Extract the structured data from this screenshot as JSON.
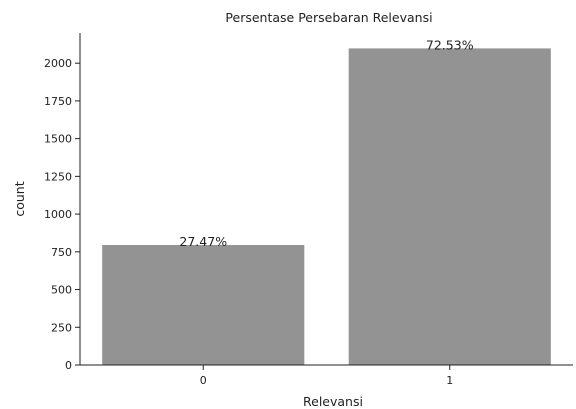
{
  "chart_data": {
    "type": "bar",
    "title": "Persentase Persebaran Relevansi",
    "xlabel": "Relevansi",
    "ylabel": "count",
    "categories": [
      "0",
      "1"
    ],
    "values": [
      795,
      2098
    ],
    "bar_labels": [
      "27.47%",
      "72.53%"
    ],
    "ylim": [
      0,
      2200
    ],
    "yticks": [
      0,
      250,
      500,
      750,
      1000,
      1250,
      1500,
      1750,
      2000
    ],
    "ytick_labels": [
      "0",
      "250",
      "500",
      "750",
      "1000",
      "1250",
      "1500",
      "1750",
      "2000"
    ],
    "grid": false,
    "legend": "none",
    "bar_color": "#939393",
    "axis_color": "#222222"
  }
}
